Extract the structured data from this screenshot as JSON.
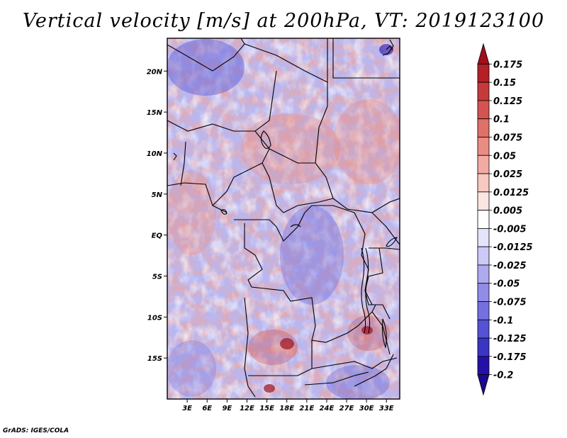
{
  "chart_data": {
    "type": "heatmap",
    "title": "Vertical velocity [m/s] at 200hPa, VT: 2019123100",
    "variable": "Vertical velocity",
    "units": "m/s",
    "level": "200hPa",
    "valid_time": "2019123100",
    "lon_range": [
      0,
      35
    ],
    "lat_range": [
      -20,
      24
    ],
    "x_ticks": [
      3,
      6,
      9,
      12,
      15,
      18,
      21,
      24,
      27,
      30,
      33
    ],
    "x_tick_labels": [
      "3E",
      "6E",
      "9E",
      "12E",
      "15E",
      "18E",
      "21E",
      "24E",
      "27E",
      "30E",
      "33E"
    ],
    "y_ticks": [
      20,
      15,
      10,
      5,
      0,
      -5,
      -10,
      -15
    ],
    "y_tick_labels": [
      "20N",
      "15N",
      "10N",
      "5N",
      "EQ",
      "5S",
      "10S",
      "15S"
    ],
    "colorbar": {
      "levels": [
        0.175,
        0.15,
        0.125,
        0.1,
        0.075,
        0.05,
        0.025,
        0.0125,
        0.005,
        -0.005,
        -0.0125,
        -0.025,
        -0.05,
        -0.075,
        -0.1,
        -0.125,
        -0.175,
        -0.2
      ],
      "labels": [
        "0.175",
        "0.15",
        "0.125",
        "0.1",
        "0.075",
        "0.05",
        "0.025",
        "0.0125",
        "0.005",
        "-0.005",
        "-0.0125",
        "-0.025",
        "-0.05",
        "-0.075",
        "-0.1",
        "-0.125",
        "-0.175",
        "-0.2"
      ],
      "colors": [
        "#a00f1a",
        "#b51f26",
        "#c63a3b",
        "#d55352",
        "#e07068",
        "#ea8c82",
        "#f2aaa3",
        "#f8c8c2",
        "#fce6e2",
        "#ffffff",
        "#e4e4fb",
        "#cbc9f6",
        "#aeaaf0",
        "#918ce8",
        "#7470e0",
        "#5652d4",
        "#3a35c2",
        "#2410a8",
        "#1a0a8c"
      ]
    }
  },
  "footer": "GrADS: IGES/COLA"
}
